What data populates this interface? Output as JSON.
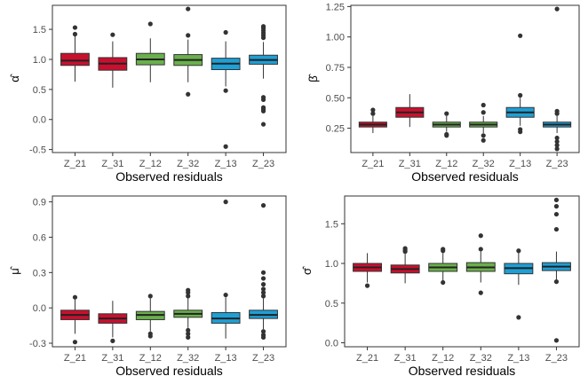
{
  "colors": {
    "red": "#C8102E",
    "green": "#6AB04C",
    "blue": "#1E9FD6",
    "outline": "#333333",
    "outlier": "#333333"
  },
  "chart_data": [
    {
      "type": "boxplot",
      "ylabel": "α̂",
      "ylabel_base": "α",
      "xlabel": "Observed residuals",
      "categories": [
        "Z_21",
        "Z_31",
        "Z_12",
        "Z_32",
        "Z_13",
        "Z_23"
      ],
      "ylim": [
        -0.55,
        1.9
      ],
      "yticks": [
        -0.5,
        0.0,
        0.5,
        1.0,
        1.5
      ],
      "ytick_labels": [
        "-0.5",
        "0.0",
        "0.5",
        "1.0",
        "1.5"
      ],
      "colors": [
        "red",
        "red",
        "green",
        "green",
        "blue",
        "blue"
      ],
      "boxes": [
        {
          "q1": 0.9,
          "median": 0.98,
          "q3": 1.1,
          "whislo": 0.63,
          "whishi": 1.4,
          "fliers": [
            1.42,
            1.53
          ]
        },
        {
          "q1": 0.82,
          "median": 0.93,
          "q3": 1.03,
          "whislo": 0.53,
          "whishi": 1.3,
          "fliers": [
            1.41
          ]
        },
        {
          "q1": 0.91,
          "median": 1.0,
          "q3": 1.1,
          "whislo": 0.62,
          "whishi": 1.35,
          "fliers": [
            1.59
          ]
        },
        {
          "q1": 0.9,
          "median": 0.99,
          "q3": 1.08,
          "whislo": 0.62,
          "whishi": 1.33,
          "fliers": [
            1.4,
            1.84,
            0.42
          ]
        },
        {
          "q1": 0.83,
          "median": 0.93,
          "q3": 1.02,
          "whislo": 0.55,
          "whishi": 1.3,
          "fliers": [
            1.45,
            0.48,
            -0.45
          ]
        },
        {
          "q1": 0.92,
          "median": 0.99,
          "q3": 1.07,
          "whislo": 0.68,
          "whishi": 1.29,
          "fliers": [
            1.36,
            1.4,
            1.44,
            1.48,
            1.52,
            1.55,
            0.37,
            0.33,
            0.2,
            0.17,
            0.14,
            -0.08
          ]
        }
      ]
    },
    {
      "type": "boxplot",
      "ylabel": "β̂",
      "ylabel_base": "β",
      "xlabel": "Observed residuals",
      "categories": [
        "Z_21",
        "Z_31",
        "Z_12",
        "Z_32",
        "Z_13",
        "Z_23"
      ],
      "ylim": [
        0.05,
        1.26
      ],
      "yticks": [
        0.25,
        0.5,
        0.75,
        1.0,
        1.25
      ],
      "ytick_labels": [
        "0.25",
        "0.50",
        "0.75",
        "1.00",
        "1.25"
      ],
      "colors": [
        "red",
        "red",
        "green",
        "green",
        "blue",
        "blue"
      ],
      "boxes": [
        {
          "q1": 0.26,
          "median": 0.28,
          "q3": 0.3,
          "whislo": 0.21,
          "whishi": 0.35,
          "fliers": [
            0.37,
            0.4
          ]
        },
        {
          "q1": 0.34,
          "median": 0.38,
          "q3": 0.42,
          "whislo": 0.26,
          "whishi": 0.53,
          "fliers": []
        },
        {
          "q1": 0.26,
          "median": 0.28,
          "q3": 0.3,
          "whislo": 0.22,
          "whishi": 0.35,
          "fliers": [
            0.37,
            0.2,
            0.19
          ]
        },
        {
          "q1": 0.26,
          "median": 0.28,
          "q3": 0.3,
          "whislo": 0.21,
          "whishi": 0.35,
          "fliers": [
            0.38,
            0.44,
            0.19,
            0.15
          ]
        },
        {
          "q1": 0.34,
          "median": 0.38,
          "q3": 0.42,
          "whislo": 0.27,
          "whishi": 0.5,
          "fliers": [
            0.52,
            0.24,
            0.22,
            1.01
          ]
        },
        {
          "q1": 0.26,
          "median": 0.28,
          "q3": 0.3,
          "whislo": 0.21,
          "whishi": 0.35,
          "fliers": [
            0.37,
            0.39,
            0.17,
            0.14,
            0.11,
            0.08,
            1.23
          ]
        }
      ]
    },
    {
      "type": "boxplot",
      "ylabel": "μ̂",
      "ylabel_base": "μ",
      "xlabel": "Observed residuals",
      "categories": [
        "Z_21",
        "Z_31",
        "Z_12",
        "Z_32",
        "Z_13",
        "Z_23"
      ],
      "ylim": [
        -0.33,
        0.95
      ],
      "yticks": [
        -0.3,
        0.0,
        0.3,
        0.6,
        0.9
      ],
      "ytick_labels": [
        "-0.3",
        "0.0",
        "0.3",
        "0.6",
        "0.9"
      ],
      "colors": [
        "red",
        "red",
        "green",
        "green",
        "blue",
        "blue"
      ],
      "boxes": [
        {
          "q1": -0.1,
          "median": -0.06,
          "q3": -0.02,
          "whislo": -0.22,
          "whishi": 0.07,
          "fliers": [
            0.09,
            -0.29
          ]
        },
        {
          "q1": -0.13,
          "median": -0.09,
          "q3": -0.05,
          "whislo": -0.25,
          "whishi": 0.06,
          "fliers": [
            -0.28
          ]
        },
        {
          "q1": -0.1,
          "median": -0.06,
          "q3": -0.03,
          "whislo": -0.2,
          "whishi": 0.08,
          "fliers": [
            0.1,
            -0.22,
            -0.24
          ]
        },
        {
          "q1": -0.08,
          "median": -0.05,
          "q3": -0.02,
          "whislo": -0.17,
          "whishi": 0.08,
          "fliers": [
            0.1,
            0.13,
            0.15,
            -0.19,
            -0.22,
            -0.25
          ]
        },
        {
          "q1": -0.13,
          "median": -0.09,
          "q3": -0.04,
          "whislo": -0.26,
          "whishi": 0.09,
          "fliers": [
            0.11,
            0.9
          ]
        },
        {
          "q1": -0.09,
          "median": -0.06,
          "q3": -0.02,
          "whislo": -0.18,
          "whishi": 0.08,
          "fliers": [
            0.1,
            0.13,
            0.16,
            0.2,
            0.25,
            0.3,
            -0.2,
            -0.23,
            -0.25,
            0.87
          ]
        }
      ]
    },
    {
      "type": "boxplot",
      "ylabel": "σ̂",
      "ylabel_base": "σ",
      "xlabel": "Observed residuals",
      "categories": [
        "Z_21",
        "Z_31",
        "Z_12",
        "Z_32",
        "Z_13",
        "Z_23"
      ],
      "ylim": [
        -0.05,
        1.85
      ],
      "yticks": [
        0.0,
        0.5,
        1.0,
        1.5
      ],
      "ytick_labels": [
        "0.0",
        "0.5",
        "1.0",
        "1.5"
      ],
      "colors": [
        "red",
        "red",
        "green",
        "green",
        "blue",
        "blue"
      ],
      "boxes": [
        {
          "q1": 0.9,
          "median": 0.95,
          "q3": 1.0,
          "whislo": 0.76,
          "whishi": 1.13,
          "fliers": [
            0.72
          ]
        },
        {
          "q1": 0.88,
          "median": 0.93,
          "q3": 0.98,
          "whislo": 0.75,
          "whishi": 1.12,
          "fliers": [
            1.15,
            1.17,
            1.19
          ]
        },
        {
          "q1": 0.9,
          "median": 0.95,
          "q3": 1.0,
          "whislo": 0.78,
          "whishi": 1.13,
          "fliers": [
            1.16,
            1.18,
            0.76
          ]
        },
        {
          "q1": 0.9,
          "median": 0.95,
          "q3": 1.01,
          "whislo": 0.76,
          "whishi": 1.15,
          "fliers": [
            1.18,
            1.35,
            0.63
          ]
        },
        {
          "q1": 0.87,
          "median": 0.94,
          "q3": 1.0,
          "whislo": 0.73,
          "whishi": 1.14,
          "fliers": [
            1.16,
            0.32
          ]
        },
        {
          "q1": 0.91,
          "median": 0.96,
          "q3": 1.01,
          "whislo": 0.79,
          "whishi": 1.15,
          "fliers": [
            1.43,
            1.62,
            1.72,
            1.8,
            0.77,
            0.03
          ]
        }
      ]
    }
  ]
}
